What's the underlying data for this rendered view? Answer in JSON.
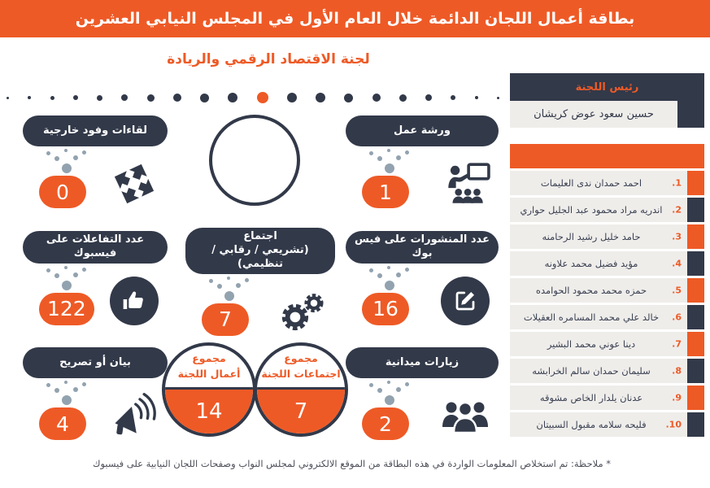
{
  "header": {
    "title": "بطاقة أعمال اللجان الدائمة خلال العام الأول في المجلس النيابي العشرين"
  },
  "subtitle": "لجنة الاقتصاد الرقمي والريادة",
  "progress_dots": {
    "count": 20,
    "active_index": 10
  },
  "stats": {
    "delegations": {
      "label": "لقاءات وفود خارجية",
      "value": "0",
      "icon": "four-way-arrows-icon"
    },
    "workshop": {
      "label": "ورشة عمل",
      "value": "1",
      "icon": "presentation-icon"
    },
    "fb_interactions": {
      "label": "عدد التفاعلات على فيسبوك",
      "value": "122",
      "icon": "thumbs-up-icon"
    },
    "meeting": {
      "label_line1": "اجتماع",
      "label_line2": "(تشريعي / رقابي / تنظيمي)",
      "value": "7",
      "icon": "gears-icon"
    },
    "fb_posts": {
      "label": "عدد المنشورات على فيس بوك",
      "value": "16",
      "icon": "edit-icon"
    },
    "statement": {
      "label": "بيان أو تصريح",
      "value": "4",
      "icon": "megaphone-icon"
    },
    "field_visits": {
      "label": "زيارات ميدانية",
      "value": "2",
      "icon": "people-icon"
    }
  },
  "totals": {
    "works": {
      "label_line1": "مجموع",
      "label_line2": "أعمال اللجنة",
      "value": "14"
    },
    "meetings": {
      "label_line1": "مجموع",
      "label_line2": "اجتماعات اللجنة",
      "value": "7"
    }
  },
  "panel": {
    "chairman_title": "رئيس اللجنة",
    "chairman_name": "حسين سعود عوض كريشان",
    "members": [
      {
        "num": "1",
        "name": "احمد حمدان ندى العليمات"
      },
      {
        "num": "2",
        "name": "اندريه مراد محمود عبد الجليل حواري"
      },
      {
        "num": "3",
        "name": "حامد خليل رشيد الرحامنه"
      },
      {
        "num": "4",
        "name": "مؤيد فضيل محمد علاونه"
      },
      {
        "num": "5",
        "name": "حمزه محمد محمود الحوامده"
      },
      {
        "num": "6",
        "name": "خالد علي محمد المسامره العقيلات"
      },
      {
        "num": "7",
        "name": "دينا عوني محمد البشير"
      },
      {
        "num": "8",
        "name": "سليمان حمدان سالم الخرابشه"
      },
      {
        "num": "9",
        "name": "عدنان يلدار الخاص مشوقه"
      },
      {
        "num": "10",
        "name": "فليحه سلامه مقبول السبيتان"
      }
    ]
  },
  "footnote": "* ملاحظة: تم استخلاص المعلومات الواردة في هذه البطاقة من الموقع الالكتروني لمجلس النواب وصفحات اللجان النيابية على فيسبوك",
  "colors": {
    "orange": "#EE5A26",
    "navy": "#323949",
    "row_bg": "#EFEDEA",
    "funnel_gray": "#92A2AF"
  },
  "chart_data": {
    "type": "table",
    "title": "لجنة الاقتصاد الرقمي والريادة",
    "categories": [
      "لقاءات وفود خارجية",
      "ورشة عمل",
      "عدد التفاعلات على فيسبوك",
      "اجتماع (تشريعي / رقابي / تنظيمي)",
      "عدد المنشورات على فيس بوك",
      "بيان أو تصريح",
      "زيارات ميدانية",
      "مجموع اجتماعات اللجنة",
      "مجموع أعمال اللجنة"
    ],
    "values": [
      0,
      1,
      122,
      7,
      16,
      4,
      2,
      7,
      14
    ]
  }
}
